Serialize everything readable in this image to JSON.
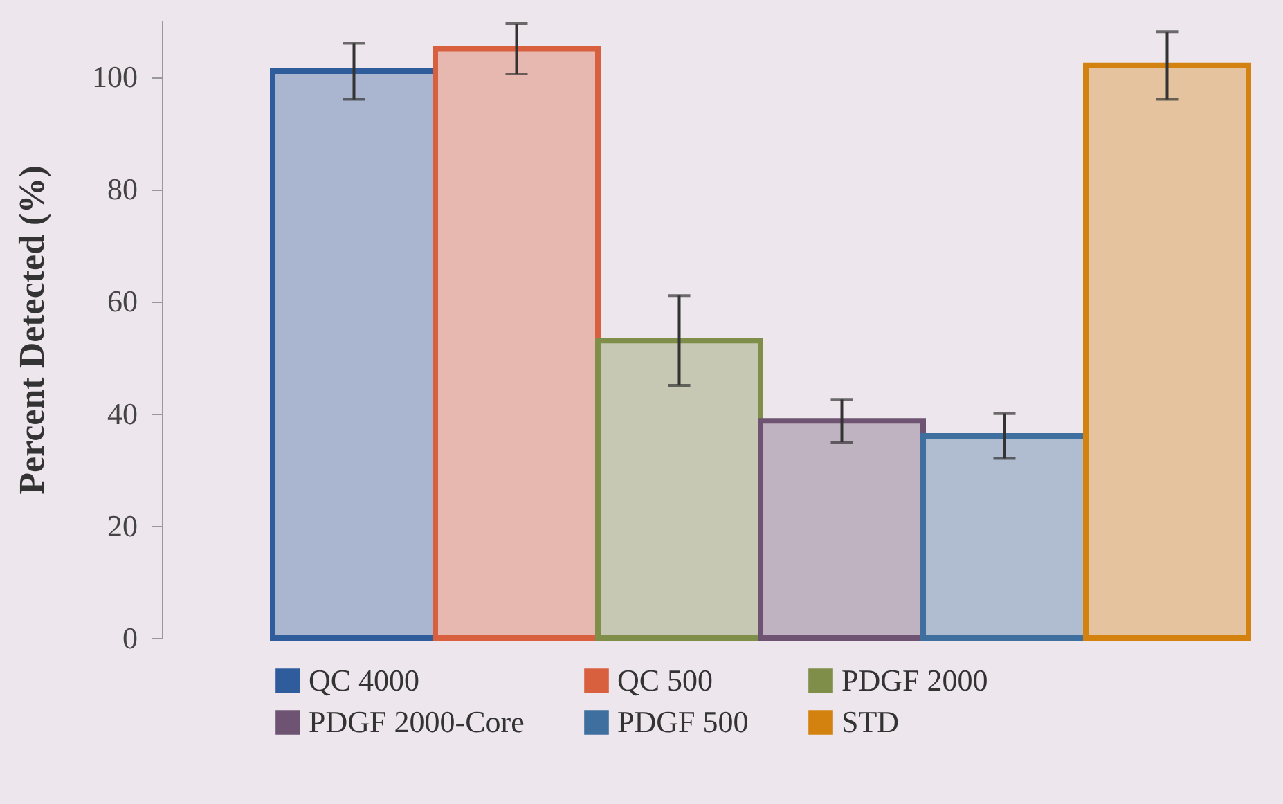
{
  "chart_data": {
    "type": "bar",
    "ylabel": "Percent Detected (%)",
    "categories": [
      null
    ],
    "series": [
      {
        "name": "QC 4000",
        "color": "#2f5d9c",
        "values": [
          101
        ],
        "errors": [
          5
        ]
      },
      {
        "name": "QC 500",
        "color": "#d9603f",
        "values": [
          105
        ],
        "errors": [
          4.5
        ]
      },
      {
        "name": "PDGF 2000",
        "color": "#7f8f4a",
        "values": [
          53
        ],
        "errors": [
          8
        ]
      },
      {
        "name": "PDGF 2000-Core",
        "color": "#6e5472",
        "values": [
          38.7
        ],
        "errors": [
          3.8
        ]
      },
      {
        "name": "PDGF 500",
        "color": "#3f6f9f",
        "values": [
          36
        ],
        "errors": [
          4
        ]
      },
      {
        "name": "STD",
        "color": "#d4820f",
        "values": [
          102
        ],
        "errors": [
          6
        ]
      }
    ],
    "ylim": [
      0,
      110
    ],
    "yticks": [
      0,
      20,
      40,
      60,
      80,
      100
    ],
    "legend": "bottom"
  }
}
